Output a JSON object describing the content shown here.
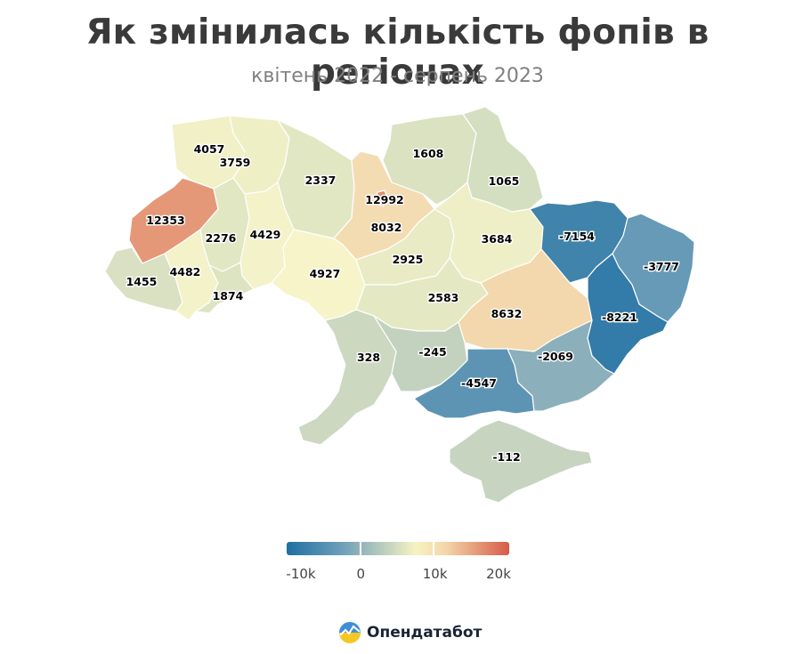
{
  "header": {
    "title": "Як змінилась кількість фопів в регіонах",
    "subtitle": "квітень 2022 - серпень 2023"
  },
  "chart_data": {
    "type": "choropleth",
    "regions": [
      {
        "id": "volyn",
        "value": 4057
      },
      {
        "id": "rivne",
        "value": 3759
      },
      {
        "id": "zhytomyr",
        "value": 2337
      },
      {
        "id": "kyiv-oblast",
        "value": 8032
      },
      {
        "id": "kyiv-city",
        "value": 12992
      },
      {
        "id": "chernihiv",
        "value": 1608
      },
      {
        "id": "sumy",
        "value": 1065
      },
      {
        "id": "lviv",
        "value": 12353
      },
      {
        "id": "ternopil",
        "value": 2276
      },
      {
        "id": "khmelnytskyi",
        "value": 4429
      },
      {
        "id": "vinnytsia",
        "value": 4927
      },
      {
        "id": "cherkasy",
        "value": 2925
      },
      {
        "id": "poltava",
        "value": 3684
      },
      {
        "id": "kharkiv",
        "value": -7154
      },
      {
        "id": "luhansk",
        "value": -3777
      },
      {
        "id": "zakarpattia",
        "value": 1455
      },
      {
        "id": "ivano-frankivsk",
        "value": 4482
      },
      {
        "id": "chernivtsi",
        "value": 1874
      },
      {
        "id": "kirovohrad",
        "value": 2583
      },
      {
        "id": "dnipro",
        "value": 8632
      },
      {
        "id": "donetsk",
        "value": -8221
      },
      {
        "id": "odesa",
        "value": 328
      },
      {
        "id": "mykolaiv",
        "value": -245
      },
      {
        "id": "kherson",
        "value": -4547
      },
      {
        "id": "zaporizhzhia",
        "value": -2069
      },
      {
        "id": "crimea",
        "value": -112
      }
    ],
    "legend": {
      "min": -10000,
      "max": 20000,
      "ticks": [
        -10000,
        0,
        10000,
        20000
      ],
      "tick_labels": [
        "-10k",
        "0",
        "10k",
        "20k"
      ],
      "colors": [
        "#1f6fa2",
        "#6f9fb9",
        "#f6f3c2",
        "#f3d4a8",
        "#d65b47"
      ]
    }
  },
  "logo": {
    "text": "Опендатабот"
  }
}
